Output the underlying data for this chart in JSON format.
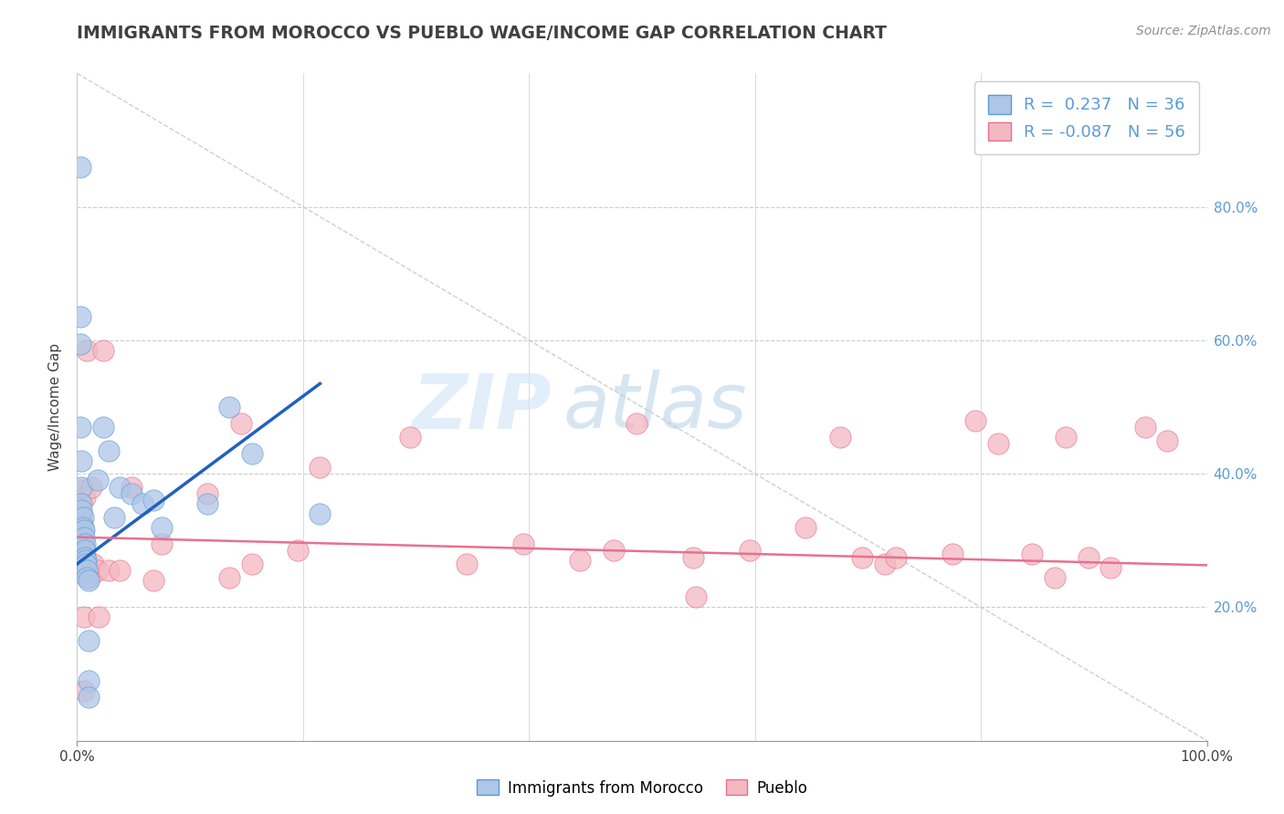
{
  "title": "IMMIGRANTS FROM MOROCCO VS PUEBLO WAGE/INCOME GAP CORRELATION CHART",
  "source": "Source: ZipAtlas.com",
  "ylabel": "Wage/Income Gap",
  "x_min": 0.0,
  "x_max": 1.0,
  "y_min": 0.0,
  "y_max": 1.0,
  "x_tick_positions": [
    0.0,
    1.0
  ],
  "x_tick_labels": [
    "0.0%",
    "100.0%"
  ],
  "y_ticks": [
    0.2,
    0.4,
    0.6,
    0.8
  ],
  "y_tick_labels": [
    "20.0%",
    "40.0%",
    "60.0%",
    "80.0%"
  ],
  "legend_entries": [
    {
      "label": "Immigrants from Morocco",
      "color": "#aec6e8",
      "r": 0.237,
      "n": 36
    },
    {
      "label": "Pueblo",
      "color": "#f4b8c1",
      "r": -0.087,
      "n": 56
    }
  ],
  "blue_scatter": [
    [
      0.003,
      0.86
    ],
    [
      0.003,
      0.635
    ],
    [
      0.003,
      0.595
    ],
    [
      0.003,
      0.47
    ],
    [
      0.004,
      0.42
    ],
    [
      0.004,
      0.38
    ],
    [
      0.004,
      0.355
    ],
    [
      0.004,
      0.345
    ],
    [
      0.005,
      0.335
    ],
    [
      0.005,
      0.32
    ],
    [
      0.006,
      0.315
    ],
    [
      0.006,
      0.305
    ],
    [
      0.007,
      0.295
    ],
    [
      0.007,
      0.285
    ],
    [
      0.007,
      0.275
    ],
    [
      0.008,
      0.27
    ],
    [
      0.008,
      0.265
    ],
    [
      0.009,
      0.255
    ],
    [
      0.009,
      0.245
    ],
    [
      0.01,
      0.24
    ],
    [
      0.01,
      0.15
    ],
    [
      0.01,
      0.09
    ],
    [
      0.01,
      0.065
    ],
    [
      0.018,
      0.39
    ],
    [
      0.023,
      0.47
    ],
    [
      0.028,
      0.435
    ],
    [
      0.033,
      0.335
    ],
    [
      0.038,
      0.38
    ],
    [
      0.048,
      0.37
    ],
    [
      0.058,
      0.355
    ],
    [
      0.068,
      0.36
    ],
    [
      0.075,
      0.32
    ],
    [
      0.115,
      0.355
    ],
    [
      0.135,
      0.5
    ],
    [
      0.155,
      0.43
    ],
    [
      0.215,
      0.34
    ]
  ],
  "pink_scatter": [
    [
      0.003,
      0.375
    ],
    [
      0.003,
      0.355
    ],
    [
      0.004,
      0.34
    ],
    [
      0.004,
      0.33
    ],
    [
      0.004,
      0.315
    ],
    [
      0.005,
      0.305
    ],
    [
      0.005,
      0.295
    ],
    [
      0.005,
      0.285
    ],
    [
      0.006,
      0.275
    ],
    [
      0.006,
      0.265
    ],
    [
      0.006,
      0.185
    ],
    [
      0.006,
      0.075
    ],
    [
      0.007,
      0.365
    ],
    [
      0.007,
      0.255
    ],
    [
      0.009,
      0.585
    ],
    [
      0.011,
      0.245
    ],
    [
      0.013,
      0.38
    ],
    [
      0.014,
      0.265
    ],
    [
      0.018,
      0.255
    ],
    [
      0.019,
      0.185
    ],
    [
      0.023,
      0.585
    ],
    [
      0.028,
      0.255
    ],
    [
      0.038,
      0.255
    ],
    [
      0.048,
      0.38
    ],
    [
      0.068,
      0.24
    ],
    [
      0.075,
      0.295
    ],
    [
      0.115,
      0.37
    ],
    [
      0.135,
      0.245
    ],
    [
      0.145,
      0.475
    ],
    [
      0.155,
      0.265
    ],
    [
      0.195,
      0.285
    ],
    [
      0.215,
      0.41
    ],
    [
      0.295,
      0.455
    ],
    [
      0.345,
      0.265
    ],
    [
      0.395,
      0.295
    ],
    [
      0.445,
      0.27
    ],
    [
      0.475,
      0.285
    ],
    [
      0.495,
      0.475
    ],
    [
      0.545,
      0.275
    ],
    [
      0.548,
      0.215
    ],
    [
      0.595,
      0.285
    ],
    [
      0.645,
      0.32
    ],
    [
      0.675,
      0.455
    ],
    [
      0.695,
      0.275
    ],
    [
      0.715,
      0.265
    ],
    [
      0.725,
      0.275
    ],
    [
      0.775,
      0.28
    ],
    [
      0.795,
      0.48
    ],
    [
      0.815,
      0.445
    ],
    [
      0.845,
      0.28
    ],
    [
      0.865,
      0.245
    ],
    [
      0.875,
      0.455
    ],
    [
      0.895,
      0.275
    ],
    [
      0.915,
      0.26
    ],
    [
      0.945,
      0.47
    ],
    [
      0.965,
      0.45
    ]
  ],
  "blue_line": [
    [
      0.0,
      0.265
    ],
    [
      0.215,
      0.535
    ]
  ],
  "pink_line": [
    [
      0.0,
      0.305
    ],
    [
      1.0,
      0.263
    ]
  ],
  "diagonal_line": [
    [
      0.0,
      1.0
    ],
    [
      1.0,
      0.0
    ]
  ],
  "watermark_zip": "ZIP",
  "watermark_atlas": "atlas",
  "blue_scatter_color": "#aec6e8",
  "pink_scatter_color": "#f4b8c1",
  "blue_edge_color": "#5b9bd5",
  "pink_edge_color": "#e87090",
  "blue_line_color": "#2060c0",
  "pink_line_color": "#e87090",
  "background_color": "#ffffff",
  "grid_color": "#cccccc",
  "title_color": "#404040",
  "source_color": "#909090",
  "y_tick_color": "#5b9bd5"
}
